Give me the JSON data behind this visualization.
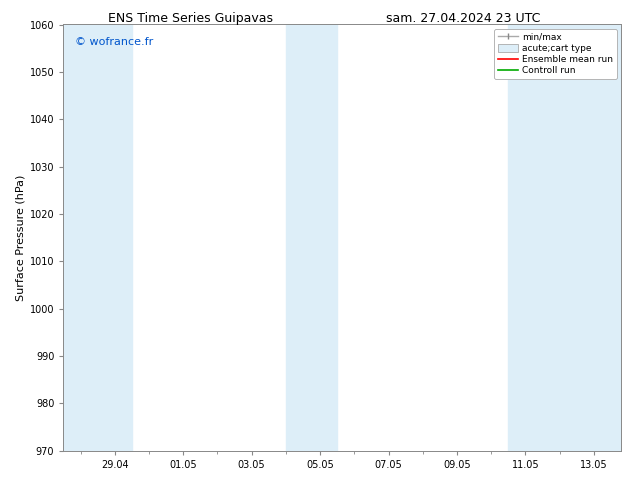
{
  "title_left": "ENS Time Series Guipavas",
  "title_right": "sam. 27.04.2024 23 UTC",
  "ylabel": "Surface Pressure (hPa)",
  "ylim": [
    970,
    1060
  ],
  "yticks": [
    970,
    980,
    990,
    1000,
    1010,
    1020,
    1030,
    1040,
    1050,
    1060
  ],
  "xlabel_ticks": [
    "29.04",
    "01.05",
    "03.05",
    "05.05",
    "07.05",
    "09.05",
    "11.05",
    "13.05"
  ],
  "watermark": "© wofrance.fr",
  "watermark_color": "#0055cc",
  "bg_color": "#ffffff",
  "plot_bg_color": "#ffffff",
  "shade_color": "#ddeef8",
  "legend_labels": [
    "min/max",
    "acute;cart type",
    "Ensemble mean run",
    "Controll run"
  ],
  "title_fontsize": 9,
  "tick_fontsize": 7,
  "ylabel_fontsize": 8,
  "watermark_fontsize": 8
}
